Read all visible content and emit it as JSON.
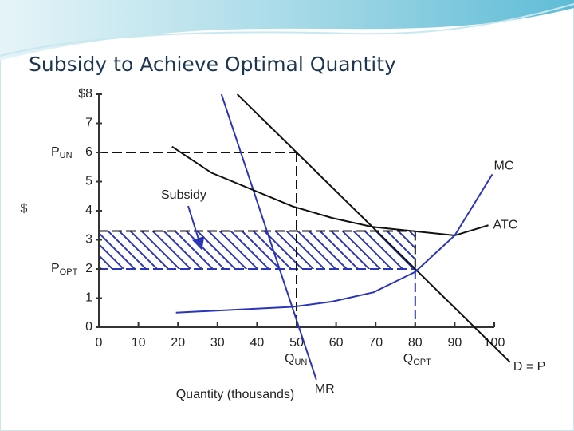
{
  "title": "Subsidy to Achieve Optimal Quantity",
  "chart_data": {
    "type": "line",
    "x_label": "Quantity (thousands)",
    "y_label": "$",
    "xlim": [
      0,
      100
    ],
    "ylim": [
      0,
      8
    ],
    "xticks": [
      0,
      10,
      20,
      30,
      40,
      50,
      60,
      70,
      80,
      90,
      100
    ],
    "yticks": [
      0,
      1,
      2,
      3,
      4,
      5,
      6,
      7,
      {
        "value": 8,
        "label": "$8"
      }
    ],
    "series": [
      {
        "name": "D = P",
        "color": "#111111",
        "x": [
          35,
          104
        ],
        "values": [
          8,
          -1.2
        ]
      },
      {
        "name": "MR",
        "color": "#2a35b8",
        "x": [
          31,
          55
        ],
        "values": [
          8,
          -1.8
        ]
      },
      {
        "name": "ATC",
        "color": "#111111",
        "x": [
          18.5,
          28.5,
          49,
          59,
          69,
          90,
          98.5
        ],
        "values": [
          6.2,
          5.3,
          4.15,
          3.75,
          3.45,
          3.15,
          3.5
        ]
      },
      {
        "name": "MC",
        "color": "#2a35b8",
        "x": [
          19.5,
          49,
          59,
          69.5,
          80,
          90,
          99.5
        ],
        "values": [
          0.5,
          0.7,
          0.88,
          1.2,
          1.9,
          3.15,
          5.25
        ]
      }
    ],
    "price_markers": [
      {
        "label": "P",
        "subscript": "UN",
        "value": 6,
        "color": "#111111"
      },
      {
        "label": "P",
        "subscript": "OPT",
        "value": 2,
        "color": "#2a35b8"
      }
    ],
    "quantity_markers": [
      {
        "label": "Q",
        "subscript": "UN",
        "value": 50,
        "color": "#111111"
      },
      {
        "label": "Q",
        "subscript": "OPT",
        "value": 80,
        "color": "#2a35b8"
      }
    ],
    "subsidy_band": {
      "label": "Subsidy",
      "ylim": [
        2,
        3.3
      ],
      "xlim": [
        0,
        80
      ],
      "color": "#2a35b8"
    }
  }
}
